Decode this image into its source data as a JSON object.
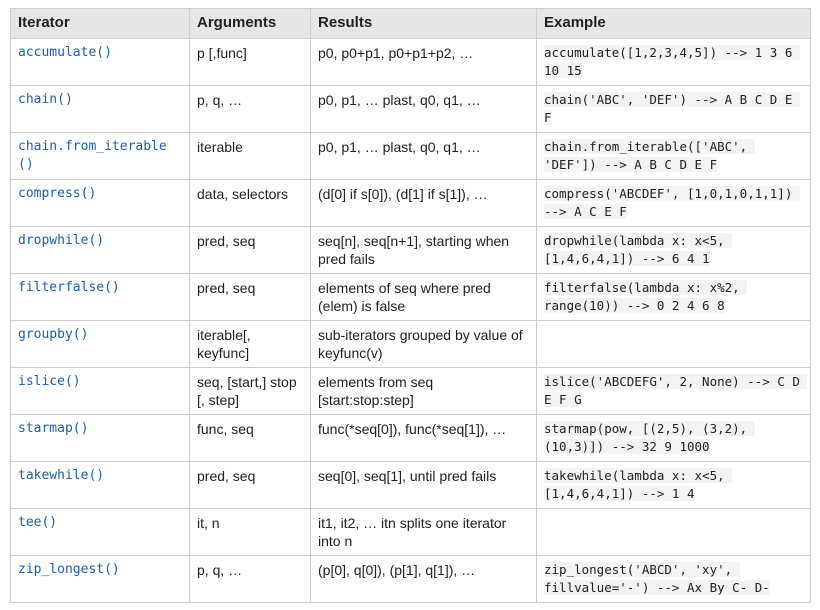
{
  "table": {
    "headers": [
      "Iterator",
      "Arguments",
      "Results",
      "Example"
    ],
    "rows": [
      {
        "iterator": "accumulate()",
        "arguments": "p [,func]",
        "results": "p0, p0+p1, p0+p1+p2, …",
        "example": "accumulate([1,2,3,4,5]) --> 1 3 6 10 15"
      },
      {
        "iterator": "chain()",
        "arguments": "p, q, …",
        "results": "p0, p1, … plast, q0, q1, …",
        "example": "chain('ABC', 'DEF') --> A B C D E F"
      },
      {
        "iterator": "chain.from_iterable()",
        "arguments": "iterable",
        "results": "p0, p1, … plast, q0, q1, …",
        "example": "chain.from_iterable(['ABC', 'DEF']) --> A B C D E F"
      },
      {
        "iterator": "compress()",
        "arguments": "data, selectors",
        "results": "(d[0] if s[0]), (d[1] if s[1]), …",
        "example": "compress('ABCDEF', [1,0,1,0,1,1]) --> A C E F"
      },
      {
        "iterator": "dropwhile()",
        "arguments": "pred, seq",
        "results": "seq[n], seq[n+1], starting when pred fails",
        "example": "dropwhile(lambda x: x<5, [1,4,6,4,1]) --> 6 4 1"
      },
      {
        "iterator": "filterfalse()",
        "arguments": "pred, seq",
        "results": "elements of seq where pred (elem) is false",
        "example": "filterfalse(lambda x: x%2, range(10)) --> 0 2 4 6 8"
      },
      {
        "iterator": "groupby()",
        "arguments": "iterable[, keyfunc]",
        "results": "sub-iterators grouped by value of keyfunc(v)",
        "example": ""
      },
      {
        "iterator": "islice()",
        "arguments": "seq, [start,] stop [, step]",
        "results": "elements from seq [start:stop:step]",
        "example": "islice('ABCDEFG', 2, None) --> C D E F G"
      },
      {
        "iterator": "starmap()",
        "arguments": "func, seq",
        "results": "func(*seq[0]), func(*seq[1]), …",
        "example": "starmap(pow, [(2,5), (3,2), (10,3)]) --> 32 9 1000"
      },
      {
        "iterator": "takewhile()",
        "arguments": "pred, seq",
        "results": "seq[0], seq[1], until pred fails",
        "example": "takewhile(lambda x: x<5, [1,4,6,4,1]) --> 1 4"
      },
      {
        "iterator": "tee()",
        "arguments": "it, n",
        "results": "it1, it2, … itn splits one iterator into n",
        "example": ""
      },
      {
        "iterator": "zip_longest()",
        "arguments": "p, q, …",
        "results": "(p[0], q[0]), (p[1], q[1]), …",
        "example": "zip_longest('ABCD', 'xy', fillvalue='-') --> Ax By C- D-"
      }
    ]
  }
}
